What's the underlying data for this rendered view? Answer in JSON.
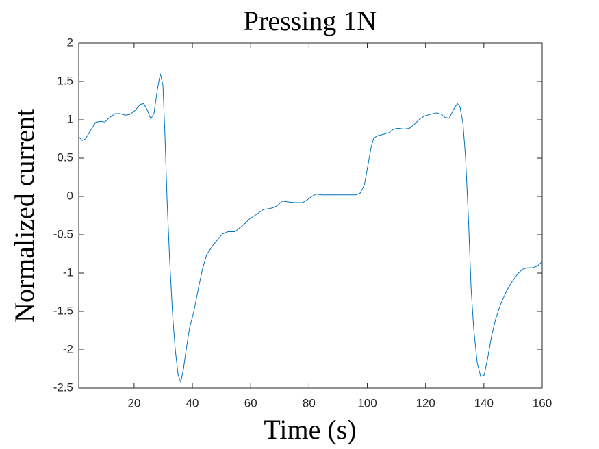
{
  "chart_data": {
    "type": "line",
    "title": "Pressing 1N",
    "x_label": "Time (s)",
    "y_label": "Normalized current",
    "x": [
      1,
      2.2,
      3.3,
      5.2,
      6.9,
      8.8,
      9.9,
      11.6,
      13.5,
      15.1,
      17,
      18.6,
      20.3,
      22.1,
      23.3,
      24.5,
      25.7,
      26.8,
      28,
      29,
      29.9,
      30.6,
      31.3,
      32.2,
      33.2,
      34.1,
      35.1,
      36,
      36.9,
      37.9,
      39,
      40.5,
      42.1,
      43.5,
      44.9,
      46.8,
      48.7,
      50.3,
      52.2,
      54.6,
      56.2,
      58.1,
      59.7,
      62.1,
      64.4,
      66.1,
      67.5,
      69.1,
      70.8,
      72.6,
      75,
      77.8,
      79.2,
      80.9,
      82.5,
      84.4,
      86.7,
      90.3,
      93.8,
      96.1,
      97.5,
      99,
      100.1,
      101.3,
      102.2,
      103.4,
      105.5,
      107.4,
      109,
      110.7,
      112.6,
      114.5,
      116.1,
      118,
      119.6,
      121.5,
      123.9,
      125.5,
      126.7,
      128.1,
      129.5,
      130.9,
      131.8,
      132.8,
      133.7,
      134.7,
      135.6,
      136.5,
      137.7,
      138.9,
      140.1,
      141.2,
      142.7,
      144.1,
      145.9,
      147.8,
      149.7,
      151.6,
      153.2,
      154.9,
      156.7,
      158.2,
      160
    ],
    "series": [
      {
        "color": "#0072bd",
        "values": [
          0.78,
          0.73,
          0.75,
          0.87,
          0.97,
          0.98,
          0.97,
          1.03,
          1.08,
          1.08,
          1.06,
          1.07,
          1.12,
          1.2,
          1.21,
          1.13,
          1.01,
          1.08,
          1.4,
          1.6,
          1.45,
          0.78,
          -0.03,
          -0.83,
          -1.54,
          -1.99,
          -2.33,
          -2.42,
          -2.26,
          -1.99,
          -1.72,
          -1.5,
          -1.19,
          -0.94,
          -0.76,
          -0.65,
          -0.56,
          -0.49,
          -0.46,
          -0.46,
          -0.41,
          -0.35,
          -0.29,
          -0.23,
          -0.17,
          -0.16,
          -0.15,
          -0.12,
          -0.06,
          -0.07,
          -0.08,
          -0.08,
          -0.05,
          0,
          0.03,
          0.02,
          0.02,
          0.02,
          0.02,
          0.02,
          0.04,
          0.15,
          0.38,
          0.64,
          0.76,
          0.79,
          0.81,
          0.83,
          0.88,
          0.89,
          0.88,
          0.89,
          0.94,
          1.01,
          1.05,
          1.07,
          1.09,
          1.07,
          1.03,
          1.02,
          1.13,
          1.21,
          1.17,
          0.96,
          0.51,
          -0.29,
          -1.19,
          -1.72,
          -2.17,
          -2.35,
          -2.33,
          -2.13,
          -1.81,
          -1.59,
          -1.39,
          -1.23,
          -1.11,
          -1.01,
          -0.95,
          -0.93,
          -0.93,
          -0.91,
          -0.85
        ]
      }
    ],
    "xlim": [
      1,
      160
    ],
    "xticks": [
      20,
      40,
      60,
      80,
      100,
      120,
      140,
      160
    ],
    "ylim": [
      -2.5,
      2
    ],
    "yticks": [
      -2.5,
      -2,
      -1.5,
      -1,
      -0.5,
      0,
      0.5,
      1,
      1.5,
      2
    ],
    "grid": false
  }
}
